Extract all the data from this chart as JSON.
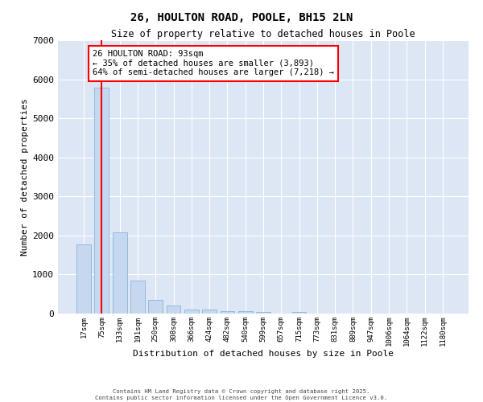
{
  "title": "26, HOULTON ROAD, POOLE, BH15 2LN",
  "subtitle": "Size of property relative to detached houses in Poole",
  "xlabel": "Distribution of detached houses by size in Poole",
  "ylabel": "Number of detached properties",
  "bar_color": "#c5d8f0",
  "bar_edge_color": "#7aadd4",
  "background_color": "#dce6f5",
  "grid_color": "#ffffff",
  "vline_color": "red",
  "vline_x": 1,
  "annotation_text": "26 HOULTON ROAD: 93sqm\n← 35% of detached houses are smaller (3,893)\n64% of semi-detached houses are larger (7,218) →",
  "annotation_box_color": "white",
  "annotation_box_edge": "red",
  "categories": [
    "17sqm",
    "75sqm",
    "133sqm",
    "191sqm",
    "250sqm",
    "308sqm",
    "366sqm",
    "424sqm",
    "482sqm",
    "540sqm",
    "599sqm",
    "657sqm",
    "715sqm",
    "773sqm",
    "831sqm",
    "889sqm",
    "947sqm",
    "1006sqm",
    "1064sqm",
    "1122sqm",
    "1180sqm"
  ],
  "values": [
    1780,
    5780,
    2080,
    840,
    340,
    210,
    110,
    95,
    70,
    55,
    50,
    0,
    50,
    0,
    0,
    0,
    0,
    0,
    0,
    0,
    0
  ],
  "ylim": [
    0,
    7000
  ],
  "yticks": [
    0,
    1000,
    2000,
    3000,
    4000,
    5000,
    6000,
    7000
  ],
  "footer_line1": "Contains HM Land Registry data © Crown copyright and database right 2025.",
  "footer_line2": "Contains public sector information licensed under the Open Government Licence v3.0."
}
